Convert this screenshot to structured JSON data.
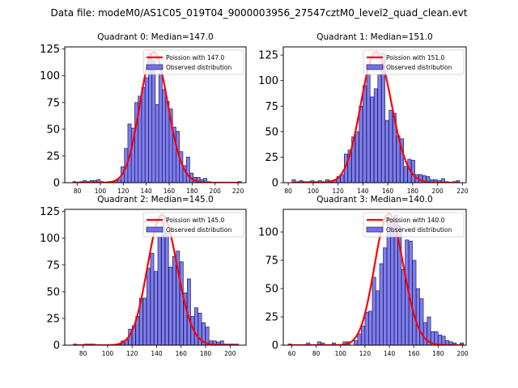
{
  "suptitle": "Data file: modeM0/AS1C05_019T04_9000003956_27547cztM0_level2_quad_clean.evt",
  "colors": {
    "bar_fill": "#7070f0",
    "bar_edge": "#22225a",
    "curve": "#ff0000"
  },
  "chart_data": [
    {
      "type": "bar",
      "title": "Quadrant 0: Median=147.0",
      "xlabel": "",
      "ylabel": "",
      "xlim": [
        69,
        227
      ],
      "ylim": [
        0,
        127
      ],
      "xticks": [
        80,
        100,
        120,
        140,
        160,
        180,
        200,
        220
      ],
      "yticks": [
        0,
        25,
        50,
        75,
        100,
        125
      ],
      "legend": {
        "position": "top-right",
        "curve_label": "Poission with 147.0",
        "bar_label": "Observed distribution"
      },
      "bin_width": 2.93,
      "bins": [
        76,
        79,
        82,
        85,
        88,
        91,
        94,
        97,
        100,
        103,
        106,
        109,
        112,
        115,
        118,
        121,
        124,
        127,
        130,
        133,
        136,
        139,
        142,
        145,
        148,
        151,
        154,
        157,
        160,
        163,
        166,
        169,
        172,
        175,
        178,
        181,
        184,
        187,
        190,
        193,
        196,
        199,
        202,
        205,
        208,
        211,
        214,
        217,
        220
      ],
      "values": [
        1,
        0,
        1,
        2,
        1,
        2,
        2,
        3,
        1,
        0,
        1,
        1,
        2,
        3,
        15,
        32,
        55,
        51,
        75,
        81,
        89,
        98,
        121,
        114,
        73,
        102,
        87,
        76,
        69,
        52,
        48,
        29,
        16,
        24,
        9,
        5,
        5,
        3,
        4,
        1,
        0,
        0,
        0,
        0,
        0,
        0,
        0,
        0,
        1
      ],
      "poisson_mean": 147.0,
      "poisson_peak": 122
    },
    {
      "type": "bar",
      "title": "Quadrant 1: Median=151.0",
      "xlabel": "",
      "ylabel": "",
      "xlim": [
        76,
        223
      ],
      "ylim": [
        0,
        133
      ],
      "xticks": [
        80,
        100,
        120,
        140,
        160,
        180,
        200,
        220
      ],
      "yticks": [
        0,
        25,
        50,
        75,
        100,
        125
      ],
      "legend": {
        "position": "top-right",
        "curve_label": "Poission with 151.0",
        "bar_label": "Observed distribution"
      },
      "bin_width": 2.73,
      "bins": [
        83,
        86,
        89,
        92,
        95,
        98,
        101,
        104,
        107,
        110,
        113,
        116,
        119,
        122,
        125,
        128,
        131,
        134,
        137,
        140,
        143,
        146,
        149,
        152,
        155,
        158,
        161,
        164,
        167,
        170,
        173,
        176,
        179,
        182,
        185,
        188,
        191,
        194,
        197,
        200,
        203,
        206,
        209,
        212,
        215
      ],
      "values": [
        3,
        1,
        2,
        1,
        1,
        2,
        1,
        2,
        1,
        3,
        2,
        3,
        6,
        8,
        28,
        32,
        45,
        50,
        75,
        95,
        106,
        84,
        92,
        106,
        127,
        61,
        71,
        68,
        46,
        43,
        16,
        23,
        22,
        8,
        8,
        7,
        6,
        3,
        3,
        2,
        4,
        1,
        0,
        1,
        2
      ],
      "poisson_mean": 151.0,
      "poisson_peak": 128
    },
    {
      "type": "bar",
      "title": "Quadrant 2: Median=145.0",
      "xlabel": "",
      "ylabel": "",
      "xlim": [
        65,
        213
      ],
      "ylim": [
        0,
        127
      ],
      "xticks": [
        80,
        100,
        120,
        140,
        160,
        180,
        200
      ],
      "yticks": [
        0,
        25,
        50,
        75,
        100,
        125
      ],
      "legend": {
        "position": "top-right",
        "curve_label": "Poission with 145.0",
        "bar_label": "Observed distribution"
      },
      "bin_width": 2.72,
      "bins": [
        72,
        75,
        78,
        81,
        84,
        87,
        90,
        93,
        96,
        99,
        102,
        105,
        108,
        111,
        114,
        117,
        120,
        123,
        126,
        129,
        132,
        135,
        138,
        141,
        144,
        147,
        150,
        153,
        156,
        159,
        162,
        165,
        168,
        171,
        174,
        177,
        180,
        183,
        186,
        189,
        192,
        195,
        198,
        201,
        204
      ],
      "values": [
        1,
        0,
        0,
        1,
        1,
        1,
        0,
        0,
        0,
        0,
        0,
        0,
        1,
        4,
        5,
        15,
        18,
        27,
        44,
        44,
        72,
        86,
        69,
        101,
        118,
        106,
        73,
        83,
        88,
        78,
        49,
        62,
        27,
        35,
        30,
        21,
        17,
        4,
        4,
        3,
        4,
        1,
        1,
        1,
        1
      ],
      "poisson_mean": 145.0,
      "poisson_peak": 122
    },
    {
      "type": "bar",
      "title": "Quadrant 3: Median=140.0",
      "xlabel": "",
      "ylabel": "",
      "xlim": [
        53,
        203
      ],
      "ylim": [
        0,
        120
      ],
      "xticks": [
        60,
        80,
        100,
        120,
        140,
        160,
        180,
        200
      ],
      "yticks": [
        0,
        25,
        50,
        75,
        100
      ],
      "legend": {
        "position": "top-right",
        "curve_label": "Poission with 140.0",
        "bar_label": "Observed distribution"
      },
      "bin_width": 2.85,
      "bins": [
        57,
        60,
        63,
        66,
        69,
        72,
        75,
        78,
        81,
        84,
        87,
        90,
        93,
        96,
        99,
        102,
        105,
        108,
        111,
        114,
        117,
        120,
        123,
        126,
        129,
        132,
        135,
        138,
        141,
        144,
        147,
        150,
        153,
        156,
        159,
        162,
        165,
        168,
        171,
        174,
        177,
        180,
        183,
        186,
        189,
        192,
        195,
        198
      ],
      "values": [
        1,
        0,
        0,
        0,
        0,
        2,
        0,
        0,
        3,
        2,
        0,
        0,
        2,
        0,
        0,
        3,
        3,
        0,
        4,
        10,
        17,
        29,
        30,
        60,
        48,
        72,
        86,
        112,
        111,
        115,
        105,
        67,
        93,
        92,
        75,
        50,
        41,
        20,
        25,
        12,
        12,
        9,
        8,
        4,
        3,
        2,
        0,
        2
      ],
      "poisson_mean": 140.0,
      "poisson_peak": 116
    }
  ]
}
